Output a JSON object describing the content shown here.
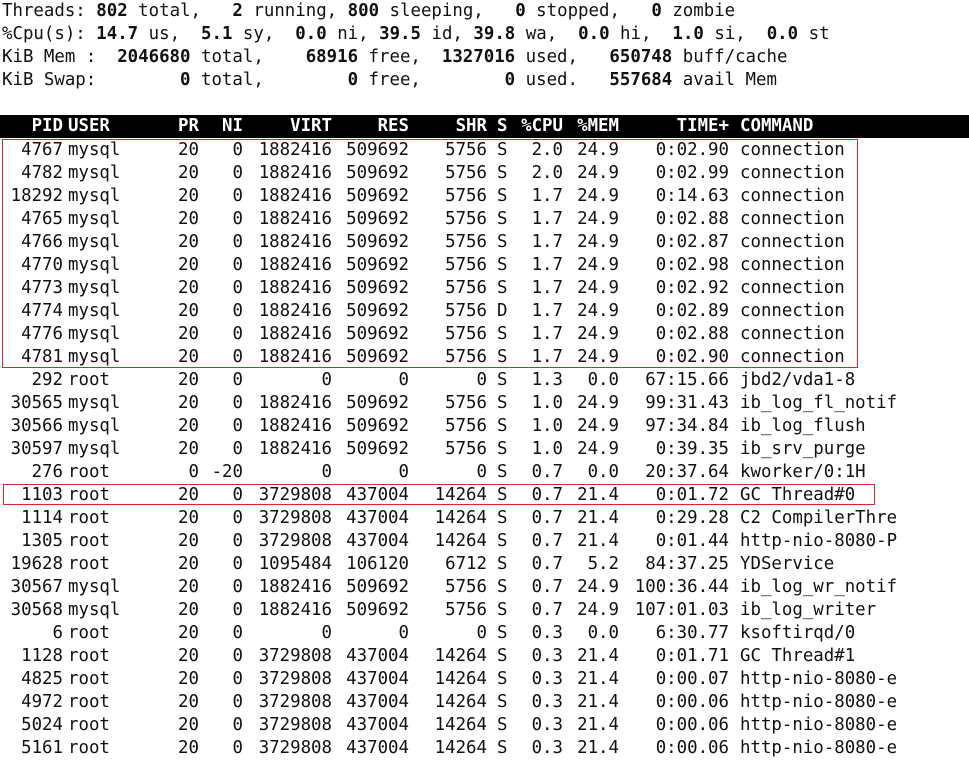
{
  "summary": {
    "threads": {
      "label": "Threads:",
      "total": "802",
      "total_label": "total,",
      "running": "2",
      "running_label": "running,",
      "sleeping": "800",
      "sleeping_label": "sleeping,",
      "stopped": "0",
      "stopped_label": "stopped,",
      "zombie": "0",
      "zombie_label": "zombie"
    },
    "cpu": {
      "label": "%Cpu(s):",
      "us": "14.7",
      "us_label": "us,",
      "sy": "5.1",
      "sy_label": "sy,",
      "ni": "0.0",
      "ni_label": "ni,",
      "id": "39.5",
      "id_label": "id,",
      "wa": "39.8",
      "wa_label": "wa,",
      "hi": "0.0",
      "hi_label": "hi,",
      "si": "1.0",
      "si_label": "si,",
      "st": "0.0",
      "st_label": "st"
    },
    "mem": {
      "label": "KiB Mem :",
      "total": "2046680",
      "total_label": "total,",
      "free": "68916",
      "free_label": "free,",
      "used": "1327016",
      "used_label": "used,",
      "buff": "650748",
      "buff_label": "buff/cache"
    },
    "swap": {
      "label": "KiB Swap:",
      "total": "0",
      "total_label": "total,",
      "free": "0",
      "free_label": "free,",
      "used": "0",
      "used_label": "used.",
      "avail": "557684",
      "avail_label": "avail Mem"
    }
  },
  "columns": [
    "PID",
    "USER",
    "PR",
    "NI",
    "VIRT",
    "RES",
    "SHR",
    "S",
    "%CPU",
    "%MEM",
    "TIME+",
    "COMMAND"
  ],
  "rows": [
    [
      "4767",
      "mysql",
      "20",
      "0",
      "1882416",
      "509692",
      "5756",
      "S",
      "2.0",
      "24.9",
      "0:02.90",
      "connection"
    ],
    [
      "4782",
      "mysql",
      "20",
      "0",
      "1882416",
      "509692",
      "5756",
      "S",
      "2.0",
      "24.9",
      "0:02.99",
      "connection"
    ],
    [
      "18292",
      "mysql",
      "20",
      "0",
      "1882416",
      "509692",
      "5756",
      "S",
      "1.7",
      "24.9",
      "0:14.63",
      "connection"
    ],
    [
      "4765",
      "mysql",
      "20",
      "0",
      "1882416",
      "509692",
      "5756",
      "S",
      "1.7",
      "24.9",
      "0:02.88",
      "connection"
    ],
    [
      "4766",
      "mysql",
      "20",
      "0",
      "1882416",
      "509692",
      "5756",
      "S",
      "1.7",
      "24.9",
      "0:02.87",
      "connection"
    ],
    [
      "4770",
      "mysql",
      "20",
      "0",
      "1882416",
      "509692",
      "5756",
      "S",
      "1.7",
      "24.9",
      "0:02.98",
      "connection"
    ],
    [
      "4773",
      "mysql",
      "20",
      "0",
      "1882416",
      "509692",
      "5756",
      "S",
      "1.7",
      "24.9",
      "0:02.92",
      "connection"
    ],
    [
      "4774",
      "mysql",
      "20",
      "0",
      "1882416",
      "509692",
      "5756",
      "D",
      "1.7",
      "24.9",
      "0:02.89",
      "connection"
    ],
    [
      "4776",
      "mysql",
      "20",
      "0",
      "1882416",
      "509692",
      "5756",
      "S",
      "1.7",
      "24.9",
      "0:02.88",
      "connection"
    ],
    [
      "4781",
      "mysql",
      "20",
      "0",
      "1882416",
      "509692",
      "5756",
      "S",
      "1.7",
      "24.9",
      "0:02.90",
      "connection"
    ],
    [
      "292",
      "root",
      "20",
      "0",
      "0",
      "0",
      "0",
      "S",
      "1.3",
      "0.0",
      "67:15.66",
      "jbd2/vda1-8"
    ],
    [
      "30565",
      "mysql",
      "20",
      "0",
      "1882416",
      "509692",
      "5756",
      "S",
      "1.0",
      "24.9",
      "99:31.43",
      "ib_log_fl_notif"
    ],
    [
      "30566",
      "mysql",
      "20",
      "0",
      "1882416",
      "509692",
      "5756",
      "S",
      "1.0",
      "24.9",
      "97:34.84",
      "ib_log_flush"
    ],
    [
      "30597",
      "mysql",
      "20",
      "0",
      "1882416",
      "509692",
      "5756",
      "S",
      "1.0",
      "24.9",
      "0:39.35",
      "ib_srv_purge"
    ],
    [
      "276",
      "root",
      "0",
      "-20",
      "0",
      "0",
      "0",
      "S",
      "0.7",
      "0.0",
      "20:37.64",
      "kworker/0:1H"
    ],
    [
      "1103",
      "root",
      "20",
      "0",
      "3729808",
      "437004",
      "14264",
      "S",
      "0.7",
      "21.4",
      "0:01.72",
      "GC Thread#0"
    ],
    [
      "1114",
      "root",
      "20",
      "0",
      "3729808",
      "437004",
      "14264",
      "S",
      "0.7",
      "21.4",
      "0:29.28",
      "C2 CompilerThre"
    ],
    [
      "1305",
      "root",
      "20",
      "0",
      "3729808",
      "437004",
      "14264",
      "S",
      "0.7",
      "21.4",
      "0:01.44",
      "http-nio-8080-P"
    ],
    [
      "19628",
      "root",
      "20",
      "0",
      "1095484",
      "106120",
      "6712",
      "S",
      "0.7",
      "5.2",
      "84:37.25",
      "YDService"
    ],
    [
      "30567",
      "mysql",
      "20",
      "0",
      "1882416",
      "509692",
      "5756",
      "S",
      "0.7",
      "24.9",
      "100:36.44",
      "ib_log_wr_notif"
    ],
    [
      "30568",
      "mysql",
      "20",
      "0",
      "1882416",
      "509692",
      "5756",
      "S",
      "0.7",
      "24.9",
      "107:01.03",
      "ib_log_writer"
    ],
    [
      "6",
      "root",
      "20",
      "0",
      "0",
      "0",
      "0",
      "S",
      "0.3",
      "0.0",
      "6:30.77",
      "ksoftirqd/0"
    ],
    [
      "1128",
      "root",
      "20",
      "0",
      "3729808",
      "437004",
      "14264",
      "S",
      "0.3",
      "21.4",
      "0:01.71",
      "GC Thread#1"
    ],
    [
      "4825",
      "root",
      "20",
      "0",
      "3729808",
      "437004",
      "14264",
      "S",
      "0.3",
      "21.4",
      "0:00.07",
      "http-nio-8080-e"
    ],
    [
      "4972",
      "root",
      "20",
      "0",
      "3729808",
      "437004",
      "14264",
      "S",
      "0.3",
      "21.4",
      "0:00.06",
      "http-nio-8080-e"
    ],
    [
      "5024",
      "root",
      "20",
      "0",
      "3729808",
      "437004",
      "14264",
      "S",
      "0.3",
      "21.4",
      "0:00.06",
      "http-nio-8080-e"
    ],
    [
      "5161",
      "root",
      "20",
      "0",
      "3729808",
      "437004",
      "14264",
      "S",
      "0.3",
      "21.4",
      "0:00.06",
      "http-nio-8080-e"
    ]
  ],
  "highlight_color": "#d9262c"
}
